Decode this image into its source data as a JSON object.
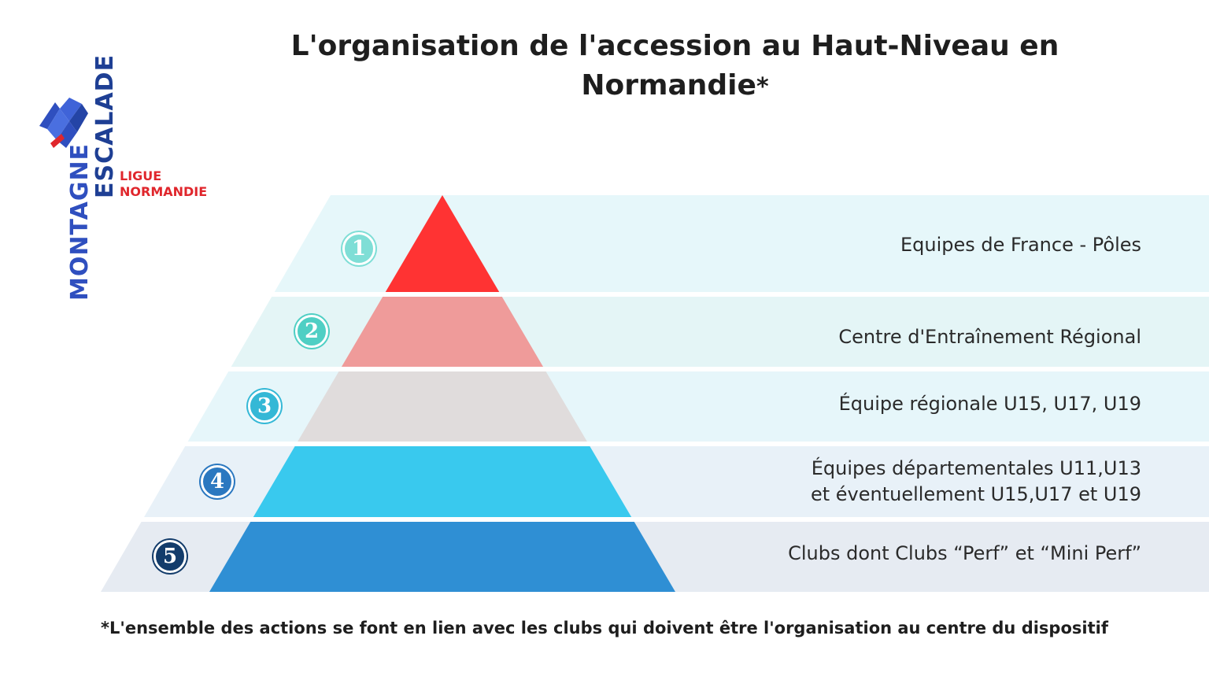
{
  "title": {
    "line1": "L'organisation de l'accession au Haut-Niveau en",
    "line2": "Normandie",
    "asterisk": "*"
  },
  "logo": {
    "word_vertical_1": "MONTAGNE",
    "word_vertical_2": "ESCALADE",
    "ligue": "LIGUE",
    "region": "NORMANDIE",
    "icon": "mountain-m-icon",
    "colors": {
      "blue": "#2f4fbf",
      "red": "#e0262c"
    }
  },
  "levels": [
    {
      "number": "1",
      "label_lines": [
        "Equipes de France - Pôles"
      ],
      "triangle_color": "#ff3333",
      "band_color": "#e6f7fa",
      "badge_color": "#7fded6"
    },
    {
      "number": "2",
      "label_lines": [
        "Centre d'Entraînement Régional"
      ],
      "triangle_color": "#ef9b9a",
      "band_color": "#e4f5f6",
      "badge_color": "#4fcfc4"
    },
    {
      "number": "3",
      "label_lines": [
        "Équipe régionale U15, U17, U19"
      ],
      "triangle_color": "#e0dcdc",
      "band_color": "#e6f6fa",
      "badge_color": "#34b8d6"
    },
    {
      "number": "4",
      "label_lines": [
        "Équipes départementales U11,U13 ",
        "et éventuellement U15,U17 et U19"
      ],
      "triangle_color": "#39c9ee",
      "band_color": "#e8f1f8",
      "badge_color": "#2b78c0"
    },
    {
      "number": "5",
      "label_lines": [
        "Clubs dont Clubs “Perf” et “Mini Perf”"
      ],
      "triangle_color": "#2f8fd4",
      "band_color": "#e6ebf2",
      "badge_color": "#133c6b"
    }
  ],
  "footnote": {
    "asterisk": "*",
    "text": "L'ensemble des actions se font en lien avec les clubs qui doivent être l'organisation au centre du dispositif"
  }
}
